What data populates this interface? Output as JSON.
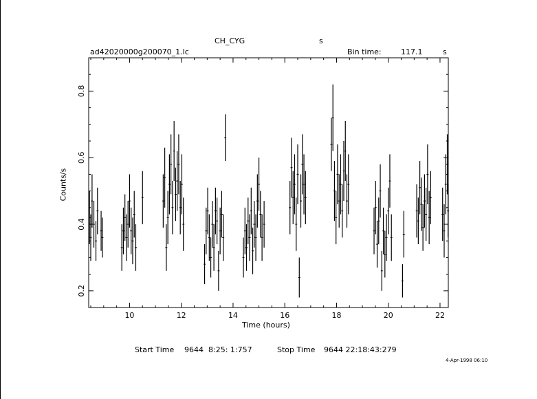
{
  "header": {
    "object": "CH_CYG",
    "object_suffix": "s",
    "filename": "ad42020000g200070_1.lc",
    "bin_label": "Bin time:",
    "bin_value": "117.1",
    "bin_unit": "s"
  },
  "footer": {
    "start_label": "Start Time",
    "start_value": "9644  8:25: 1:757",
    "stop_label": "Stop Time",
    "stop_value": "9644 22:18:43:279",
    "timestamp": "4-Apr-1998 06:10"
  },
  "chart_data": {
    "type": "scatter",
    "xlabel": "Time (hours)",
    "ylabel": "Counts/s",
    "xlim": [
      8.42,
      22.32
    ],
    "ylim": [
      0.15,
      0.9
    ],
    "xticks": [
      10,
      12,
      14,
      16,
      18,
      20,
      22
    ],
    "yticks": [
      0.2,
      0.4,
      0.6,
      0.8
    ],
    "error_bars": true,
    "series": [
      {
        "points": [
          [
            8.45,
            0.42,
            0.08
          ],
          [
            8.5,
            0.36,
            0.07
          ],
          [
            8.55,
            0.47,
            0.08
          ],
          [
            8.62,
            0.4,
            0.07
          ],
          [
            8.7,
            0.35,
            0.06
          ],
          [
            8.76,
            0.44,
            0.07
          ],
          [
            8.9,
            0.38,
            0.06
          ],
          [
            8.95,
            0.36,
            0.06
          ],
          [
            9.7,
            0.33,
            0.07
          ],
          [
            9.76,
            0.38,
            0.07
          ],
          [
            9.82,
            0.42,
            0.07
          ],
          [
            9.88,
            0.36,
            0.07
          ],
          [
            9.94,
            0.4,
            0.07
          ],
          [
            10.0,
            0.47,
            0.08
          ],
          [
            10.06,
            0.38,
            0.07
          ],
          [
            10.12,
            0.35,
            0.07
          ],
          [
            10.18,
            0.43,
            0.07
          ],
          [
            10.24,
            0.33,
            0.07
          ],
          [
            10.5,
            0.48,
            0.08
          ],
          [
            11.3,
            0.47,
            0.08
          ],
          [
            11.36,
            0.54,
            0.09
          ],
          [
            11.42,
            0.33,
            0.07
          ],
          [
            11.48,
            0.42,
            0.08
          ],
          [
            11.54,
            0.52,
            0.09
          ],
          [
            11.6,
            0.58,
            0.09
          ],
          [
            11.66,
            0.45,
            0.08
          ],
          [
            11.72,
            0.62,
            0.09
          ],
          [
            11.78,
            0.49,
            0.08
          ],
          [
            11.84,
            0.53,
            0.09
          ],
          [
            11.9,
            0.58,
            0.09
          ],
          [
            11.96,
            0.45,
            0.08
          ],
          [
            12.02,
            0.52,
            0.09
          ],
          [
            12.08,
            0.4,
            0.08
          ],
          [
            12.9,
            0.28,
            0.06
          ],
          [
            12.96,
            0.38,
            0.07
          ],
          [
            13.02,
            0.44,
            0.07
          ],
          [
            13.08,
            0.36,
            0.07
          ],
          [
            13.14,
            0.3,
            0.06
          ],
          [
            13.2,
            0.4,
            0.07
          ],
          [
            13.26,
            0.33,
            0.07
          ],
          [
            13.32,
            0.44,
            0.07
          ],
          [
            13.38,
            0.41,
            0.07
          ],
          [
            13.44,
            0.26,
            0.06
          ],
          [
            13.5,
            0.38,
            0.07
          ],
          [
            13.56,
            0.43,
            0.07
          ],
          [
            13.62,
            0.36,
            0.07
          ],
          [
            13.7,
            0.66,
            0.07
          ],
          [
            14.4,
            0.3,
            0.06
          ],
          [
            14.46,
            0.38,
            0.07
          ],
          [
            14.52,
            0.33,
            0.07
          ],
          [
            14.58,
            0.41,
            0.07
          ],
          [
            14.64,
            0.36,
            0.07
          ],
          [
            14.7,
            0.44,
            0.07
          ],
          [
            14.76,
            0.32,
            0.07
          ],
          [
            14.82,
            0.4,
            0.07
          ],
          [
            14.88,
            0.36,
            0.07
          ],
          [
            14.94,
            0.47,
            0.08
          ],
          [
            15.0,
            0.52,
            0.08
          ],
          [
            15.06,
            0.43,
            0.07
          ],
          [
            15.12,
            0.36,
            0.07
          ],
          [
            15.2,
            0.4,
            0.07
          ],
          [
            16.2,
            0.45,
            0.08
          ],
          [
            16.26,
            0.57,
            0.09
          ],
          [
            16.32,
            0.48,
            0.08
          ],
          [
            16.38,
            0.52,
            0.09
          ],
          [
            16.44,
            0.4,
            0.08
          ],
          [
            16.5,
            0.55,
            0.09
          ],
          [
            16.56,
            0.24,
            0.06
          ],
          [
            16.62,
            0.47,
            0.08
          ],
          [
            16.68,
            0.58,
            0.09
          ],
          [
            16.74,
            0.52,
            0.09
          ],
          [
            16.8,
            0.48,
            0.08
          ],
          [
            17.8,
            0.64,
            0.08
          ],
          [
            17.86,
            0.72,
            0.1
          ],
          [
            17.92,
            0.5,
            0.09
          ],
          [
            17.98,
            0.42,
            0.08
          ],
          [
            18.04,
            0.55,
            0.09
          ],
          [
            18.1,
            0.47,
            0.08
          ],
          [
            18.16,
            0.52,
            0.09
          ],
          [
            18.22,
            0.44,
            0.08
          ],
          [
            18.28,
            0.56,
            0.09
          ],
          [
            18.34,
            0.62,
            0.09
          ],
          [
            18.4,
            0.47,
            0.08
          ],
          [
            18.46,
            0.52,
            0.09
          ],
          [
            19.45,
            0.38,
            0.07
          ],
          [
            19.51,
            0.45,
            0.08
          ],
          [
            19.57,
            0.34,
            0.07
          ],
          [
            19.63,
            0.41,
            0.07
          ],
          [
            19.69,
            0.5,
            0.08
          ],
          [
            19.75,
            0.26,
            0.06
          ],
          [
            19.81,
            0.38,
            0.07
          ],
          [
            19.87,
            0.31,
            0.07
          ],
          [
            19.93,
            0.36,
            0.07
          ],
          [
            20.0,
            0.44,
            0.07
          ],
          [
            20.06,
            0.53,
            0.08
          ],
          [
            20.12,
            0.36,
            0.07
          ],
          [
            20.55,
            0.23,
            0.05
          ],
          [
            20.6,
            0.37,
            0.07
          ],
          [
            21.1,
            0.44,
            0.08
          ],
          [
            21.16,
            0.41,
            0.07
          ],
          [
            21.22,
            0.51,
            0.08
          ],
          [
            21.28,
            0.46,
            0.08
          ],
          [
            21.34,
            0.39,
            0.07
          ],
          [
            21.4,
            0.47,
            0.08
          ],
          [
            21.46,
            0.43,
            0.08
          ],
          [
            21.52,
            0.55,
            0.09
          ],
          [
            21.58,
            0.42,
            0.08
          ],
          [
            21.64,
            0.48,
            0.08
          ],
          [
            22.1,
            0.43,
            0.08
          ],
          [
            22.16,
            0.38,
            0.08
          ],
          [
            22.22,
            0.52,
            0.09
          ],
          [
            22.28,
            0.58,
            0.09
          ],
          [
            22.31,
            0.44,
            0.08
          ]
        ]
      }
    ]
  }
}
